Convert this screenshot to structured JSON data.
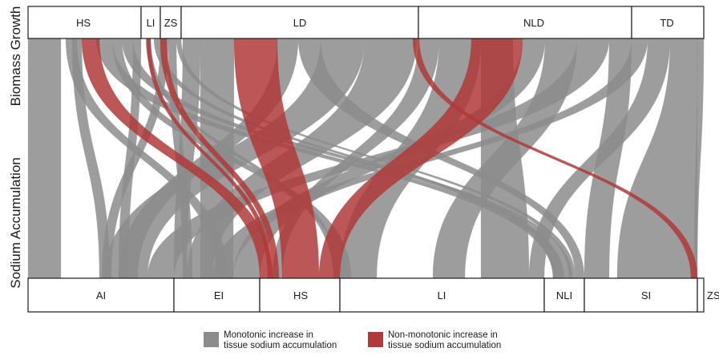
{
  "axis": {
    "top_label": "Biomass Growth",
    "bottom_label": "Sodium Accumulation"
  },
  "top_categories": [
    "HS",
    "LI",
    "ZS",
    "LD",
    "NLD",
    "TD"
  ],
  "bottom_categories": [
    "AI",
    "EI",
    "HS",
    "LI",
    "NLI",
    "SI",
    "ZS"
  ],
  "colors": {
    "monotonic": "#8c8c8c",
    "non_monotonic": "#b03a3a",
    "box_stroke": "#1a1a1a"
  },
  "legend": {
    "monotonic": {
      "line1": "Monotonic increase in",
      "line2": "tissue sodium accumulation"
    },
    "non_monotonic": {
      "line1": "Non-monotonic increase in",
      "line2": "tissue sodium accumulation"
    }
  }
}
